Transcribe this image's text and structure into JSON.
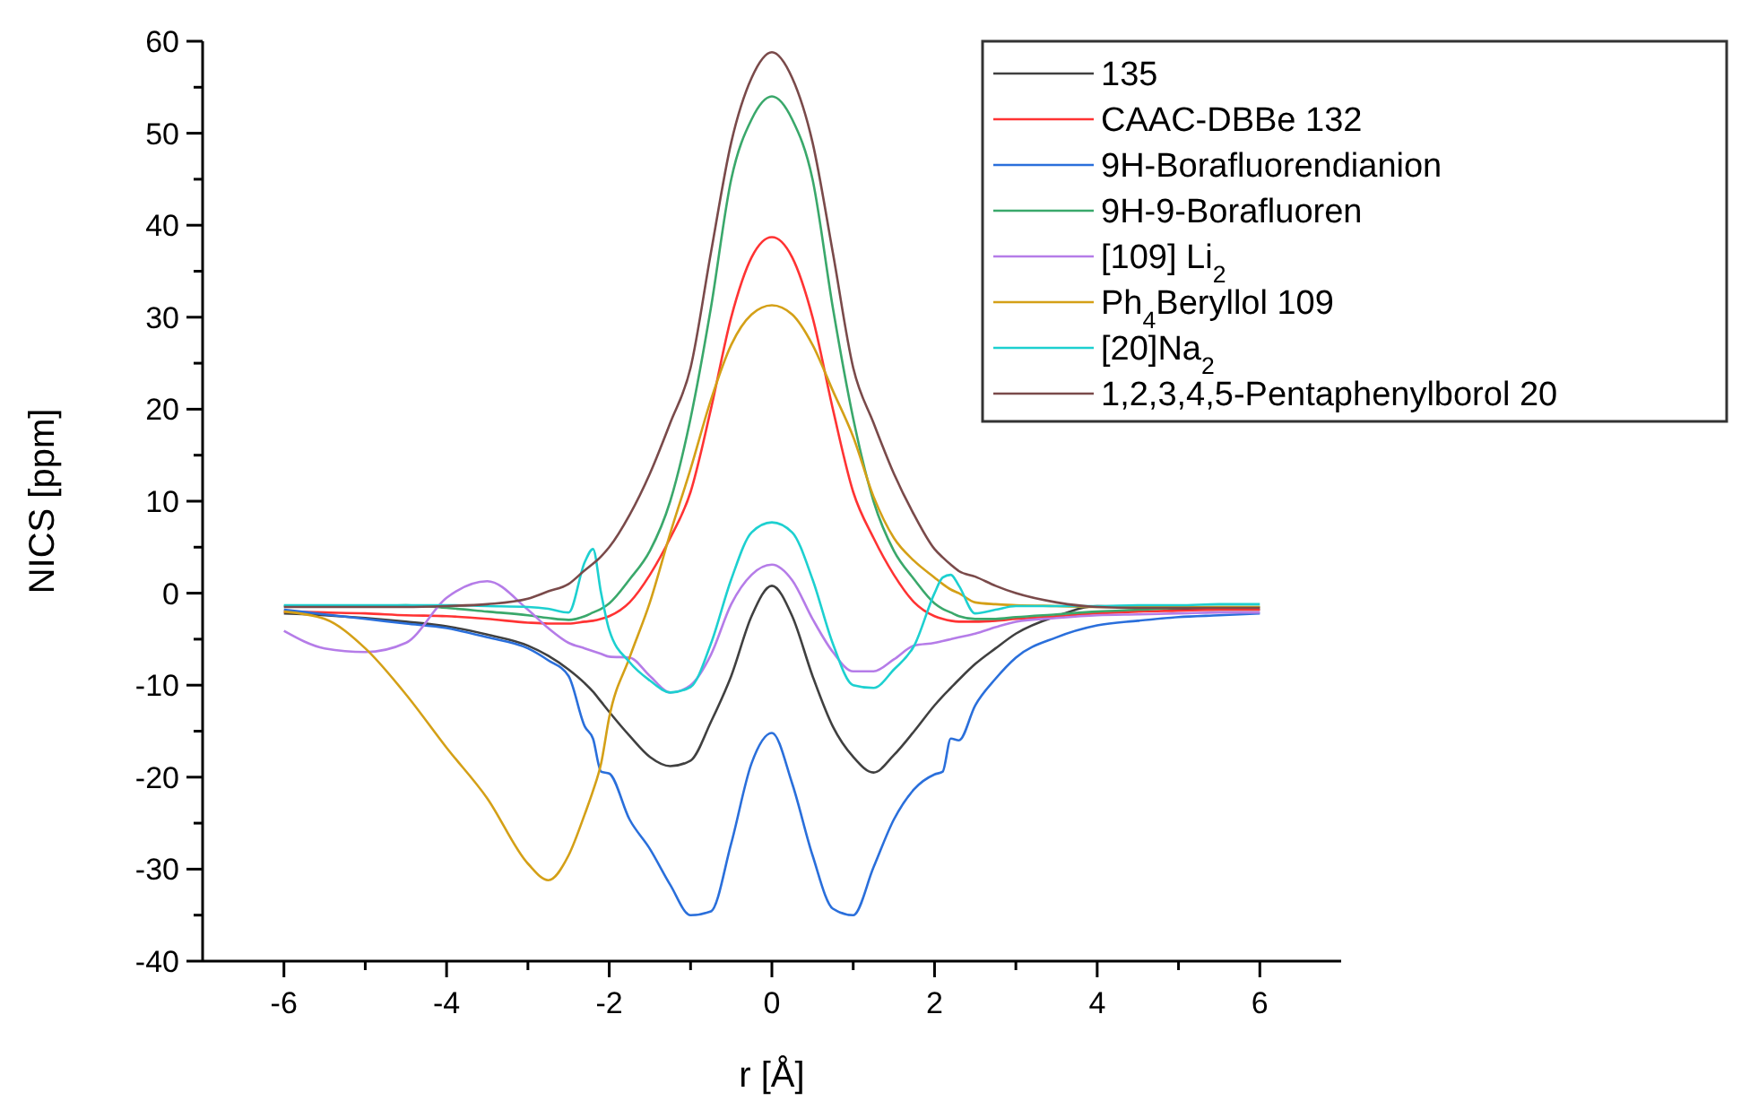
{
  "chart_data": {
    "type": "line",
    "xlabel": "r [Å]",
    "ylabel": "NICS [ppm]",
    "xlim": [
      -7,
      7
    ],
    "xticks": [
      -6,
      {
        "value": -5,
        "label": null
      },
      -4,
      {
        "value": -3,
        "label": null
      },
      -2,
      {
        "value": -1,
        "label": null
      },
      0,
      {
        "value": 1,
        "label": null
      },
      2,
      {
        "value": 3,
        "label": null
      },
      4,
      {
        "value": 5,
        "label": null
      },
      6
    ],
    "ylim": [
      -40,
      60
    ],
    "yticks": [
      -40,
      {
        "value": -35,
        "label": null
      },
      -30,
      {
        "value": -25,
        "label": null
      },
      -20,
      {
        "value": -15,
        "label": null
      },
      -10,
      {
        "value": -5,
        "label": null
      },
      0,
      {
        "value": 5,
        "label": null
      },
      10,
      {
        "value": 15,
        "label": null
      },
      20,
      {
        "value": 25,
        "label": null
      },
      30,
      {
        "value": 35,
        "label": null
      },
      40,
      {
        "value": 45,
        "label": null
      },
      50,
      {
        "value": 55,
        "label": null
      },
      60
    ],
    "x": [
      -6,
      -5.5,
      -5,
      -4.5,
      -4,
      -3.5,
      -3,
      -2.75,
      -2.5,
      -2.3,
      -2.2,
      -2.1,
      -2,
      -1.75,
      -1.5,
      -1.25,
      -1,
      -0.75,
      -0.5,
      -0.25,
      0,
      0.25,
      0.5,
      0.75,
      1,
      1.25,
      1.5,
      1.75,
      2,
      2.1,
      2.2,
      2.3,
      2.5,
      2.75,
      3,
      3.5,
      4,
      4.5,
      5,
      5.5,
      6
    ],
    "legend": "top right",
    "marker": "none",
    "line_style": "solid",
    "grid": false,
    "series": [
      {
        "name": "135",
        "color": "#404040",
        "values": [
          -2.2,
          -2.4,
          -2.7,
          -3.1,
          -3.6,
          -4.5,
          -5.7,
          -6.8,
          -8.3,
          -9.8,
          -10.7,
          -11.8,
          -12.9,
          -15.5,
          -17.8,
          -18.8,
          -18.2,
          -14,
          -9,
          -2.5,
          0.8,
          -2.5,
          -9,
          -14.5,
          -17.8,
          -19.5,
          -17.6,
          -15,
          -12.2,
          -11.2,
          -10.3,
          -9.4,
          -7.7,
          -6,
          -4.4,
          -2.5,
          -1.4,
          -1.5,
          -1.7,
          -1.8,
          -1.8
        ]
      },
      {
        "name": "CAAC-DBBe 132",
        "color": "#ff3333",
        "values": [
          -2,
          -2.1,
          -2.2,
          -2.4,
          -2.5,
          -2.8,
          -3.2,
          -3.3,
          -3.3,
          -3.1,
          -3,
          -2.8,
          -2.5,
          -1,
          2,
          6,
          11,
          20,
          30,
          36.5,
          38.7,
          36.5,
          30,
          20,
          11,
          6,
          2,
          -1,
          -2.5,
          -2.8,
          -3,
          -3.1,
          -3.1,
          -3,
          -2.8,
          -2.5,
          -2.2,
          -2,
          -1.9,
          -1.8,
          -1.8
        ]
      },
      {
        "name": "9H-Borafluorendianion",
        "color": "#2a6fdb",
        "values": [
          -1.8,
          -2.3,
          -2.8,
          -3.3,
          -3.8,
          -4.8,
          -6,
          -7.3,
          -9,
          -14.5,
          -15.8,
          -19.4,
          -19.6,
          -24.6,
          -27.8,
          -31.7,
          -35,
          -34.6,
          -27.2,
          -18.5,
          -15.2,
          -20.7,
          -28.5,
          -34.3,
          -35,
          -29.8,
          -24.6,
          -21.3,
          -19.7,
          -19.4,
          -15.8,
          -16,
          -12.2,
          -9.3,
          -7,
          -4.8,
          -3.5,
          -3,
          -2.6,
          -2.4,
          -2.2
        ]
      },
      {
        "name": "9H-9-Borafluoren",
        "color": "#3aa86b",
        "values": [
          -1.4,
          -1.4,
          -1.4,
          -1.3,
          -1.6,
          -2,
          -2.4,
          -2.7,
          -2.9,
          -2.5,
          -2.1,
          -1.7,
          -1.1,
          1.5,
          4.6,
          10,
          19,
          31,
          45,
          51.5,
          54,
          51.5,
          45,
          31,
          19,
          10,
          4.6,
          1.5,
          -1.1,
          -1.7,
          -2.1,
          -2.5,
          -2.8,
          -2.8,
          -2.6,
          -2.3,
          -2,
          -1.8,
          -1.6,
          -1.5,
          -1.5
        ]
      },
      {
        "name": "[109] Li$_{2}$",
        "color": "#b57ce8",
        "values": [
          -4.1,
          -6,
          -6.4,
          -5.4,
          -0.5,
          1.3,
          -1.8,
          -3.8,
          -5.4,
          -6,
          -6.3,
          -6.6,
          -6.9,
          -7,
          -9,
          -10.8,
          -10,
          -6.7,
          -1.2,
          2,
          3.1,
          1.4,
          -2.8,
          -6.4,
          -8.5,
          -8.5,
          -7.2,
          -5.7,
          -5.4,
          -5.2,
          -5,
          -4.8,
          -4.4,
          -3.7,
          -3.1,
          -2.7,
          -2.4,
          -2.3,
          -2.2,
          -2.1,
          -2.1
        ]
      },
      {
        "name": "Ph$_{4}$Beryllol 109",
        "color": "#d4a017",
        "values": [
          -2,
          -2.8,
          -6,
          -11,
          -16.8,
          -22.3,
          -29.4,
          -31.2,
          -28.5,
          -24,
          -21.5,
          -18.5,
          -13.5,
          -7,
          -1,
          6.5,
          13.5,
          21,
          27,
          30.3,
          31.3,
          30.3,
          27,
          22,
          17,
          10.5,
          6,
          3.5,
          1.7,
          1,
          0.4,
          0,
          -1,
          -1.2,
          -1.3,
          -1.4,
          -1.5,
          -1.5,
          -1.5,
          -1.5,
          -1.5
        ]
      },
      {
        "name": "[20]Na$_{2}$",
        "color": "#1dd0d0",
        "values": [
          -1.3,
          -1.3,
          -1.3,
          -1.3,
          -1.3,
          -1.4,
          -1.5,
          -1.7,
          -2.1,
          3.4,
          4.8,
          0,
          -4,
          -7.5,
          -9.5,
          -10.8,
          -10.2,
          -5.5,
          1.5,
          6.6,
          7.7,
          6.6,
          1.5,
          -5.5,
          -10,
          -10.3,
          -8.3,
          -5.7,
          0,
          1.7,
          2,
          0.8,
          -2.2,
          -1.8,
          -1.4,
          -1.4,
          -1.4,
          -1.3,
          -1.3,
          -1.2,
          -1.2
        ]
      },
      {
        "name": "1,2,3,4,5-Pentaphenylborol 20",
        "color": "#7a4a4a",
        "values": [
          -1.5,
          -1.5,
          -1.5,
          -1.5,
          -1.4,
          -1.2,
          -0.6,
          0.2,
          1,
          2.5,
          3.2,
          4,
          5,
          8.5,
          13,
          18.5,
          24.5,
          37,
          49,
          56,
          58.8,
          56,
          49,
          37,
          24.5,
          18.5,
          13,
          8.5,
          4.8,
          3.9,
          3.1,
          2.4,
          1.8,
          0.8,
          0,
          -1,
          -1.5,
          -1.6,
          -1.6,
          -1.6,
          -1.6
        ]
      }
    ]
  }
}
